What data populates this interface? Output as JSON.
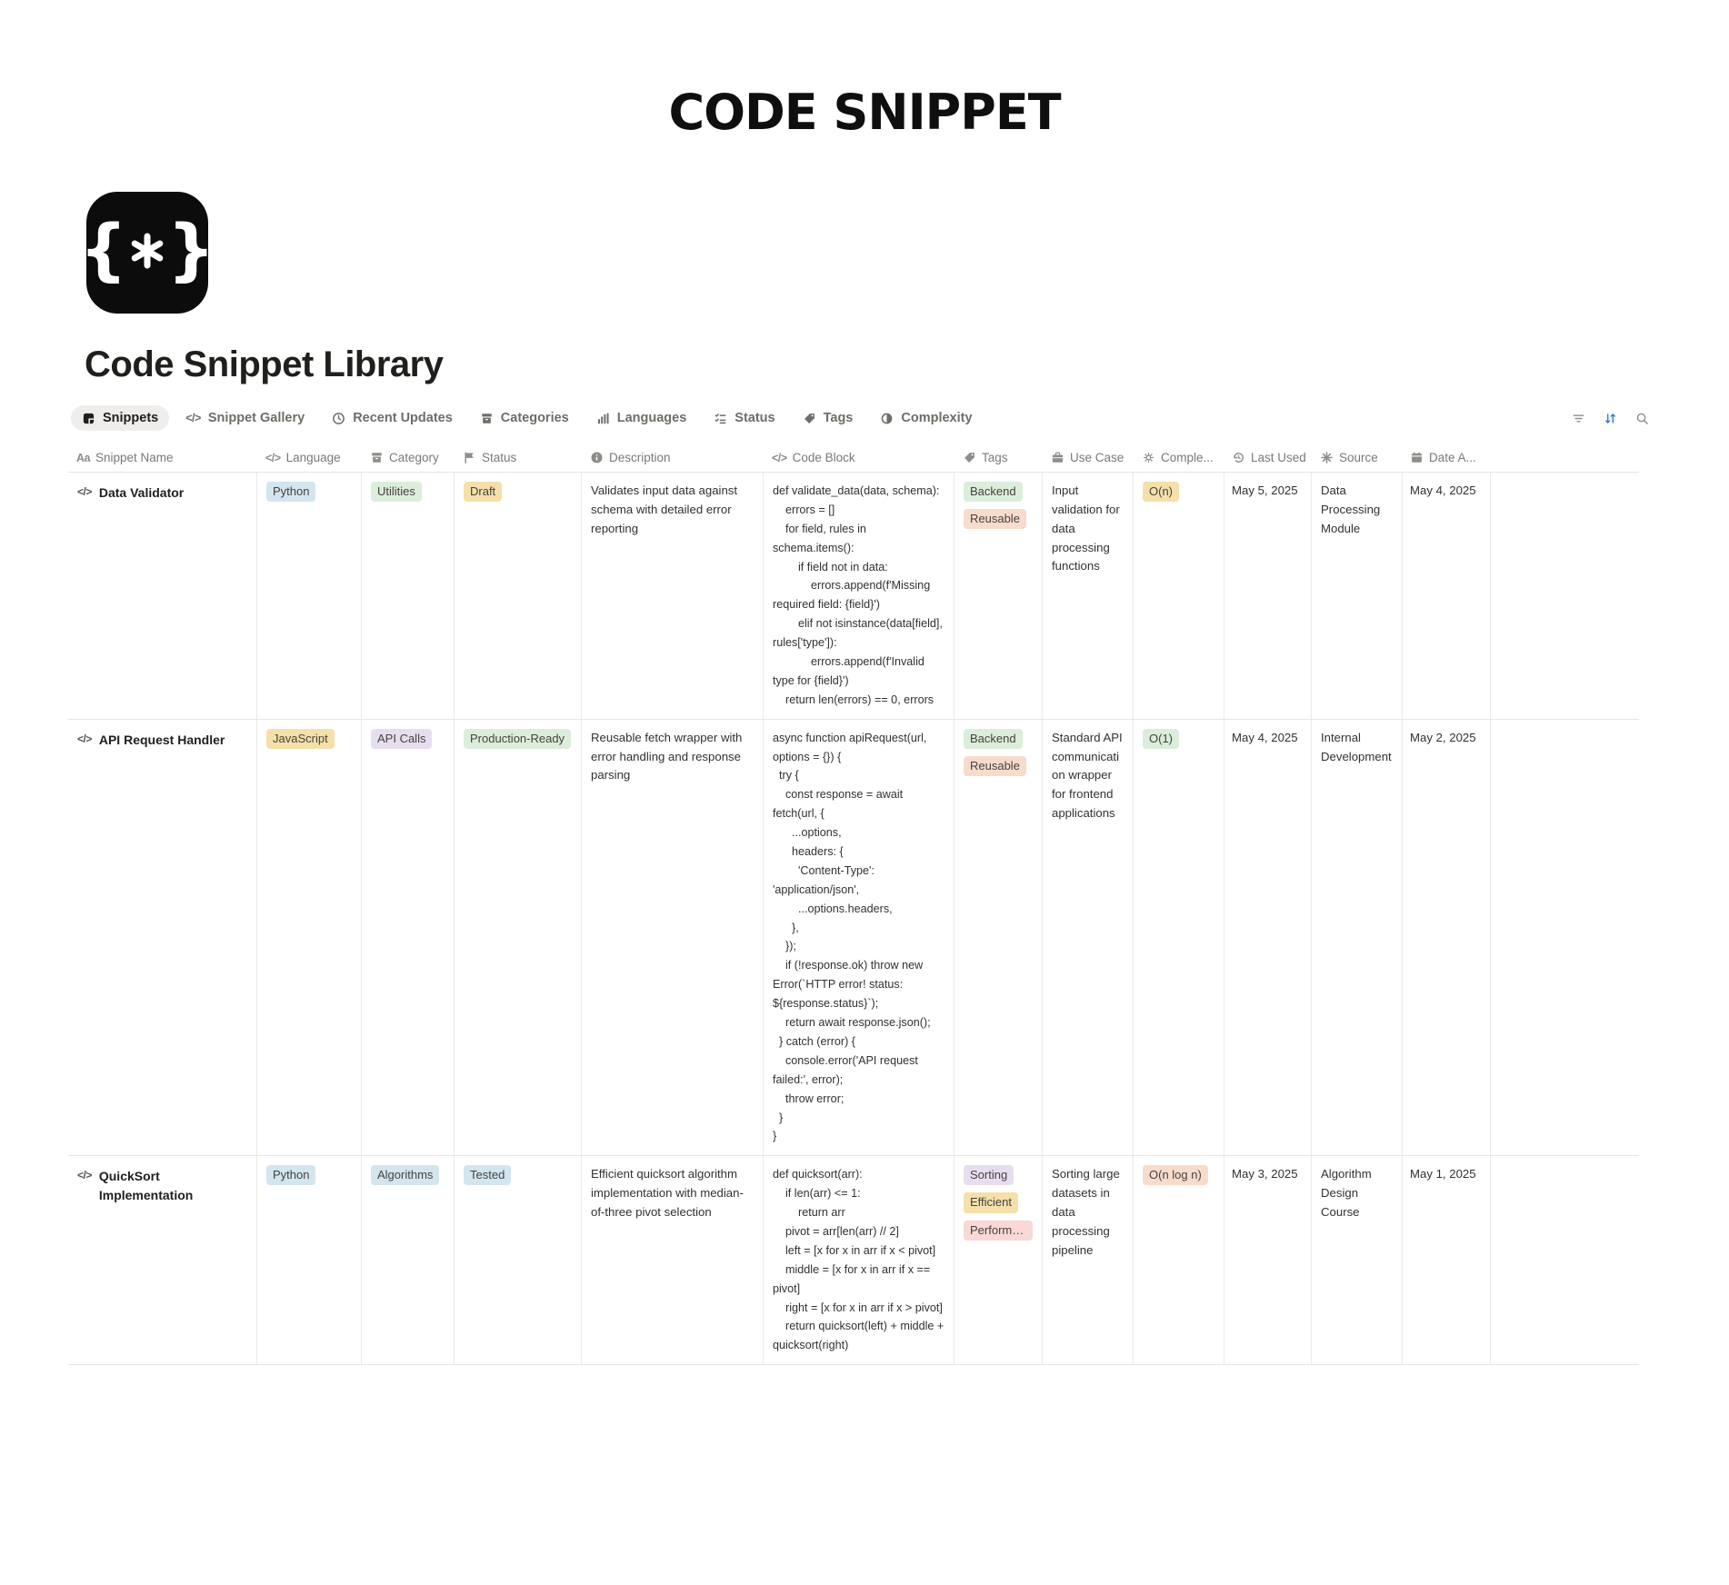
{
  "header": {
    "brand_title": "CODE SNIPPET"
  },
  "page": {
    "icon_brace_left": "{",
    "icon_brace_right": "}",
    "icon_name": "asterisk-braces-icon",
    "title": "Code Snippet Library"
  },
  "views": [
    {
      "label": "Snippets",
      "icon": "table-icon",
      "active": true
    },
    {
      "label": "Snippet Gallery",
      "icon": "code-icon",
      "active": false
    },
    {
      "label": "Recent Updates",
      "icon": "clock-icon",
      "active": false
    },
    {
      "label": "Categories",
      "icon": "archive-icon",
      "active": false
    },
    {
      "label": "Languages",
      "icon": "bars-icon",
      "active": false
    },
    {
      "label": "Status",
      "icon": "checklist-icon",
      "active": false
    },
    {
      "label": "Tags",
      "icon": "tag-icon",
      "active": false
    },
    {
      "label": "Complexity",
      "icon": "ring-icon",
      "active": false
    }
  ],
  "toolbar": {
    "filter_icon": "filter-icon",
    "sort_icon": "sort-icon",
    "search_icon": "search-icon",
    "sort_active_color": "#2f80d6"
  },
  "table": {
    "columns": [
      {
        "label": "Snippet Name",
        "icon": "aa-icon"
      },
      {
        "label": "Language",
        "icon": "code-icon"
      },
      {
        "label": "Category",
        "icon": "archive-icon"
      },
      {
        "label": "Status",
        "icon": "flag-icon"
      },
      {
        "label": "Description",
        "icon": "info-icon"
      },
      {
        "label": "Code Block",
        "icon": "code-icon"
      },
      {
        "label": "Tags",
        "icon": "tag-icon"
      },
      {
        "label": "Use Case",
        "icon": "briefcase-icon"
      },
      {
        "label": "Comple...",
        "icon": "gears-icon"
      },
      {
        "label": "Last Used",
        "icon": "history-icon"
      },
      {
        "label": "Source",
        "icon": "sparkle-icon"
      },
      {
        "label": "Date A...",
        "icon": "calendar-icon"
      }
    ],
    "rows": [
      {
        "name": "Data Validator",
        "language": {
          "label": "Python",
          "color": "blue"
        },
        "category": {
          "label": "Utilities",
          "color": "green"
        },
        "status": {
          "label": "Draft",
          "color": "yellow"
        },
        "description": "Validates input data against schema with detailed error reporting",
        "code": "def validate_data(data, schema):\n    errors = []\n    for field, rules in schema.items():\n        if field not in data:\n            errors.append(f'Missing required field: {field}')\n        elif not isinstance(data[field], rules['type']):\n            errors.append(f'Invalid type for {field}')\n    return len(errors) == 0, errors",
        "tags": [
          {
            "label": "Backend",
            "color": "green"
          },
          {
            "label": "Reusable",
            "color": "orange"
          }
        ],
        "use_case": "Input validation for data processing functions",
        "complexity": {
          "label": "O(n)",
          "color": "yellow"
        },
        "last_used": "May 5, 2025",
        "source": "Data Processing Module",
        "date_added": "May 4, 2025"
      },
      {
        "name": "API Request Handler",
        "language": {
          "label": "JavaScript",
          "color": "yellow"
        },
        "category": {
          "label": "API Calls",
          "color": "purple"
        },
        "status": {
          "label": "Production-Ready",
          "color": "green"
        },
        "description": "Reusable fetch wrapper with error handling and response parsing",
        "code": "async function apiRequest(url, options = {}) {\n  try {\n    const response = await fetch(url, {\n      ...options,\n      headers: {\n        'Content-Type': 'application/json',\n        ...options.headers,\n      },\n    });\n    if (!response.ok) throw new Error(`HTTP error! status: ${response.status}`);\n    return await response.json();\n  } catch (error) {\n    console.error('API request failed:', error);\n    throw error;\n  }\n}",
        "tags": [
          {
            "label": "Backend",
            "color": "green"
          },
          {
            "label": "Reusable",
            "color": "orange"
          }
        ],
        "use_case": "Standard API communication wrapper for frontend applications",
        "complexity": {
          "label": "O(1)",
          "color": "green"
        },
        "last_used": "May 4, 2025",
        "source": "Internal Development",
        "date_added": "May 2, 2025"
      },
      {
        "name": "QuickSort Implementation",
        "language": {
          "label": "Python",
          "color": "blue"
        },
        "category": {
          "label": "Algorithms",
          "color": "blue"
        },
        "status": {
          "label": "Tested",
          "color": "blue"
        },
        "description": "Efficient quicksort algorithm implementation with median-of-three pivot selection",
        "code": "def quicksort(arr):\n    if len(arr) <= 1:\n        return arr\n    pivot = arr[len(arr) // 2]\n    left = [x for x in arr if x < pivot]\n    middle = [x for x in arr if x == pivot]\n    right = [x for x in arr if x > pivot]\n    return quicksort(left) + middle + quicksort(right)",
        "tags": [
          {
            "label": "Sorting",
            "color": "purple"
          },
          {
            "label": "Efficient",
            "color": "yellow"
          },
          {
            "label": "Performa...",
            "color": "red"
          }
        ],
        "use_case": "Sorting large datasets in data processing pipeline",
        "complexity": {
          "label": "O(n log n)",
          "color": "orange"
        },
        "last_used": "May 3, 2025",
        "source": "Algorithm Design Course",
        "date_added": "May 1, 2025"
      }
    ]
  },
  "colors": {
    "pill_palette": {
      "blue": "#d3e5ef",
      "green": "#dbeddb",
      "yellow": "#f5e0a9",
      "purple": "#e6def0",
      "orange": "#f8dccb",
      "red": "#f9d8d5"
    },
    "pill_text": "#45433d",
    "accent_icon_bg": "#0c0c0c"
  }
}
